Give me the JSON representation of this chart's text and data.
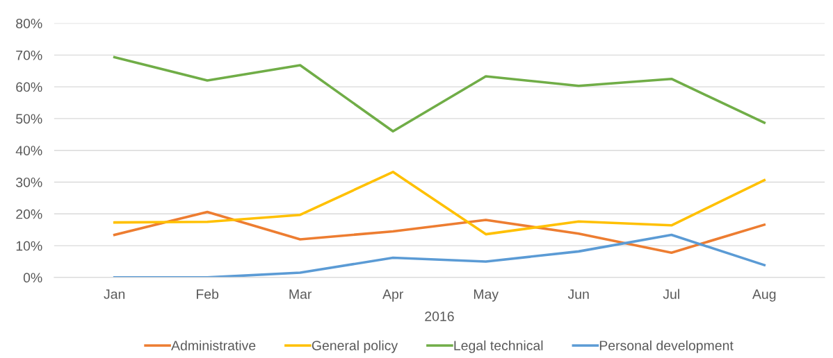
{
  "chart_data": {
    "type": "line",
    "xlabel": "2016",
    "categories": [
      "Jan",
      "Feb",
      "Mar",
      "Apr",
      "May",
      "Jun",
      "Jul",
      "Aug"
    ],
    "series": [
      {
        "name": "Administrative",
        "color": "#ed7d31",
        "values": [
          13.4,
          20.6,
          12.0,
          14.5,
          18.1,
          13.8,
          7.8,
          16.6
        ]
      },
      {
        "name": "General policy",
        "color": "#ffc000",
        "values": [
          17.3,
          17.5,
          19.7,
          33.2,
          13.6,
          17.6,
          16.4,
          30.6
        ]
      },
      {
        "name": "Legal technical",
        "color": "#70ad47",
        "values": [
          69.3,
          62.0,
          66.8,
          46.0,
          63.3,
          60.3,
          62.5,
          48.7
        ]
      },
      {
        "name": "Personal development",
        "color": "#5b9bd5",
        "values": [
          0,
          0,
          1.5,
          6.2,
          5.0,
          8.2,
          13.4,
          3.9
        ]
      }
    ],
    "ylim": [
      0,
      80
    ],
    "yticks": [
      {
        "value": 0,
        "label": "0%"
      },
      {
        "value": 10,
        "label": "10%"
      },
      {
        "value": 20,
        "label": "20%"
      },
      {
        "value": 30,
        "label": "30%"
      },
      {
        "value": 40,
        "label": "40%"
      },
      {
        "value": 50,
        "label": "50%"
      },
      {
        "value": 60,
        "label": "60%"
      },
      {
        "value": 70,
        "label": "70%"
      },
      {
        "value": 80,
        "label": "80%"
      }
    ],
    "grid": "y",
    "legend": "bottom",
    "marker": "none",
    "line_style": "solid"
  }
}
